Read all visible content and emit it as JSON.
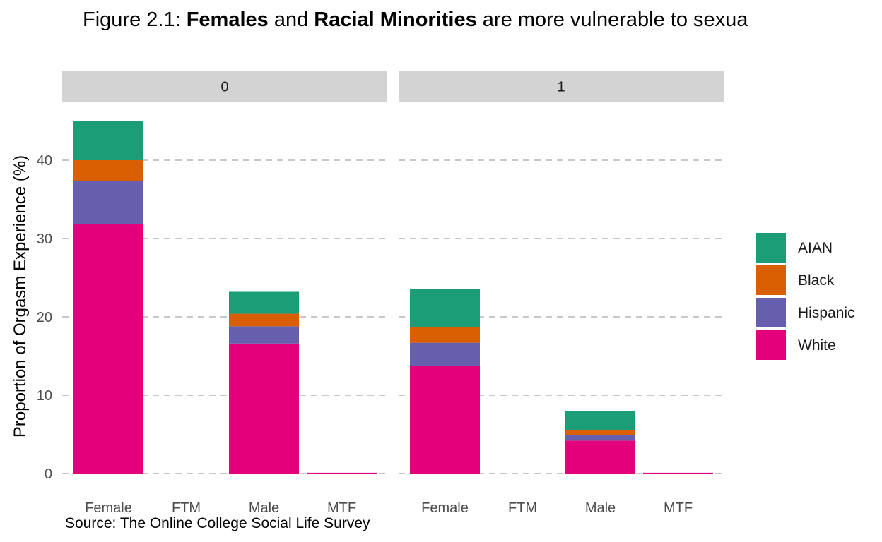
{
  "title": {
    "parts": [
      {
        "text": "Figure 2.1: ",
        "bold": false
      },
      {
        "text": "Females",
        "bold": true
      },
      {
        "text": " and ",
        "bold": false
      },
      {
        "text": "Racial Minorities",
        "bold": true
      },
      {
        "text": " are more vulnerable to sexua",
        "bold": false
      }
    ]
  },
  "caption": "Source: The Online College Social Life Survey",
  "colors": {
    "AIAN": "#1b9e77",
    "Black": "#d95f02",
    "Hispanic": "#665fad",
    "White": "#e3007a"
  },
  "chart_data": {
    "type": "bar",
    "stacked": true,
    "ylabel": "Proportion of Orgasm Experience (%)",
    "ylim": [
      0,
      46
    ],
    "yticks": [
      0,
      10,
      20,
      30,
      40
    ],
    "categories": [
      "Female",
      "FTM",
      "Male",
      "MTF"
    ],
    "panels": [
      {
        "label": "0",
        "series": [
          {
            "name": "White",
            "values": [
              31.8,
              0,
              16.6,
              0.1
            ]
          },
          {
            "name": "Hispanic",
            "values": [
              5.5,
              0,
              2.2,
              0
            ]
          },
          {
            "name": "Black",
            "values": [
              2.7,
              0,
              1.6,
              0
            ]
          },
          {
            "name": "AIAN",
            "values": [
              5.0,
              0,
              2.8,
              0
            ]
          }
        ]
      },
      {
        "label": "1",
        "series": [
          {
            "name": "White",
            "values": [
              13.7,
              0,
              4.2,
              0.1
            ]
          },
          {
            "name": "Hispanic",
            "values": [
              3.0,
              0,
              0.7,
              0
            ]
          },
          {
            "name": "Black",
            "values": [
              2.0,
              0,
              0.6,
              0
            ]
          },
          {
            "name": "AIAN",
            "values": [
              4.9,
              0,
              2.5,
              0
            ]
          }
        ]
      }
    ],
    "legend": {
      "position": "right",
      "entries": [
        "AIAN",
        "Black",
        "Hispanic",
        "White"
      ]
    },
    "grid": "horizontal-dashed"
  }
}
